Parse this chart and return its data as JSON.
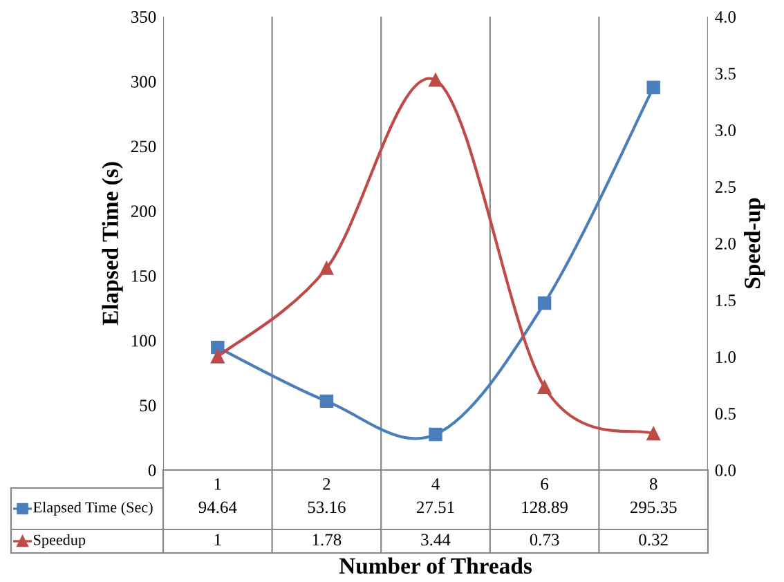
{
  "chart_data": {
    "type": "line",
    "xlabel": "Number of Threads",
    "ylabel": "Elapsed Time (s)",
    "y2label": "Speed-up",
    "categories": [
      "1",
      "2",
      "4",
      "6",
      "8"
    ],
    "series": [
      {
        "name": "Elapsed Time (Sec)",
        "color": "#4a7ebb",
        "marker": "square",
        "values": [
          94.64,
          53.16,
          27.51,
          128.89,
          295.35
        ]
      },
      {
        "name": "Speedup",
        "color": "#be4b48",
        "marker": "triangle",
        "axis": "y2",
        "values": [
          1,
          1.78,
          3.44,
          0.73,
          0.32
        ]
      }
    ],
    "ylim": [
      0,
      350
    ],
    "yticks": [
      0,
      50,
      100,
      150,
      200,
      250,
      300,
      350
    ],
    "y2lim": [
      0,
      4.0
    ],
    "y2ticks": [
      {
        "value": 0,
        "label": "0.0"
      },
      {
        "value": 0.5,
        "label": "0.5"
      },
      {
        "value": 1,
        "label": "1.0"
      },
      {
        "value": 1.5,
        "label": "1.5"
      },
      {
        "value": 2,
        "label": "2.0"
      },
      {
        "value": 2.5,
        "label": "2.5"
      },
      {
        "value": 3,
        "label": "3.0"
      },
      {
        "value": 3.5,
        "label": "3.5"
      },
      {
        "value": 4,
        "label": "4.0"
      }
    ],
    "grid": "x",
    "data_labels": true,
    "line_style": "solid",
    "legend": "bottom"
  }
}
